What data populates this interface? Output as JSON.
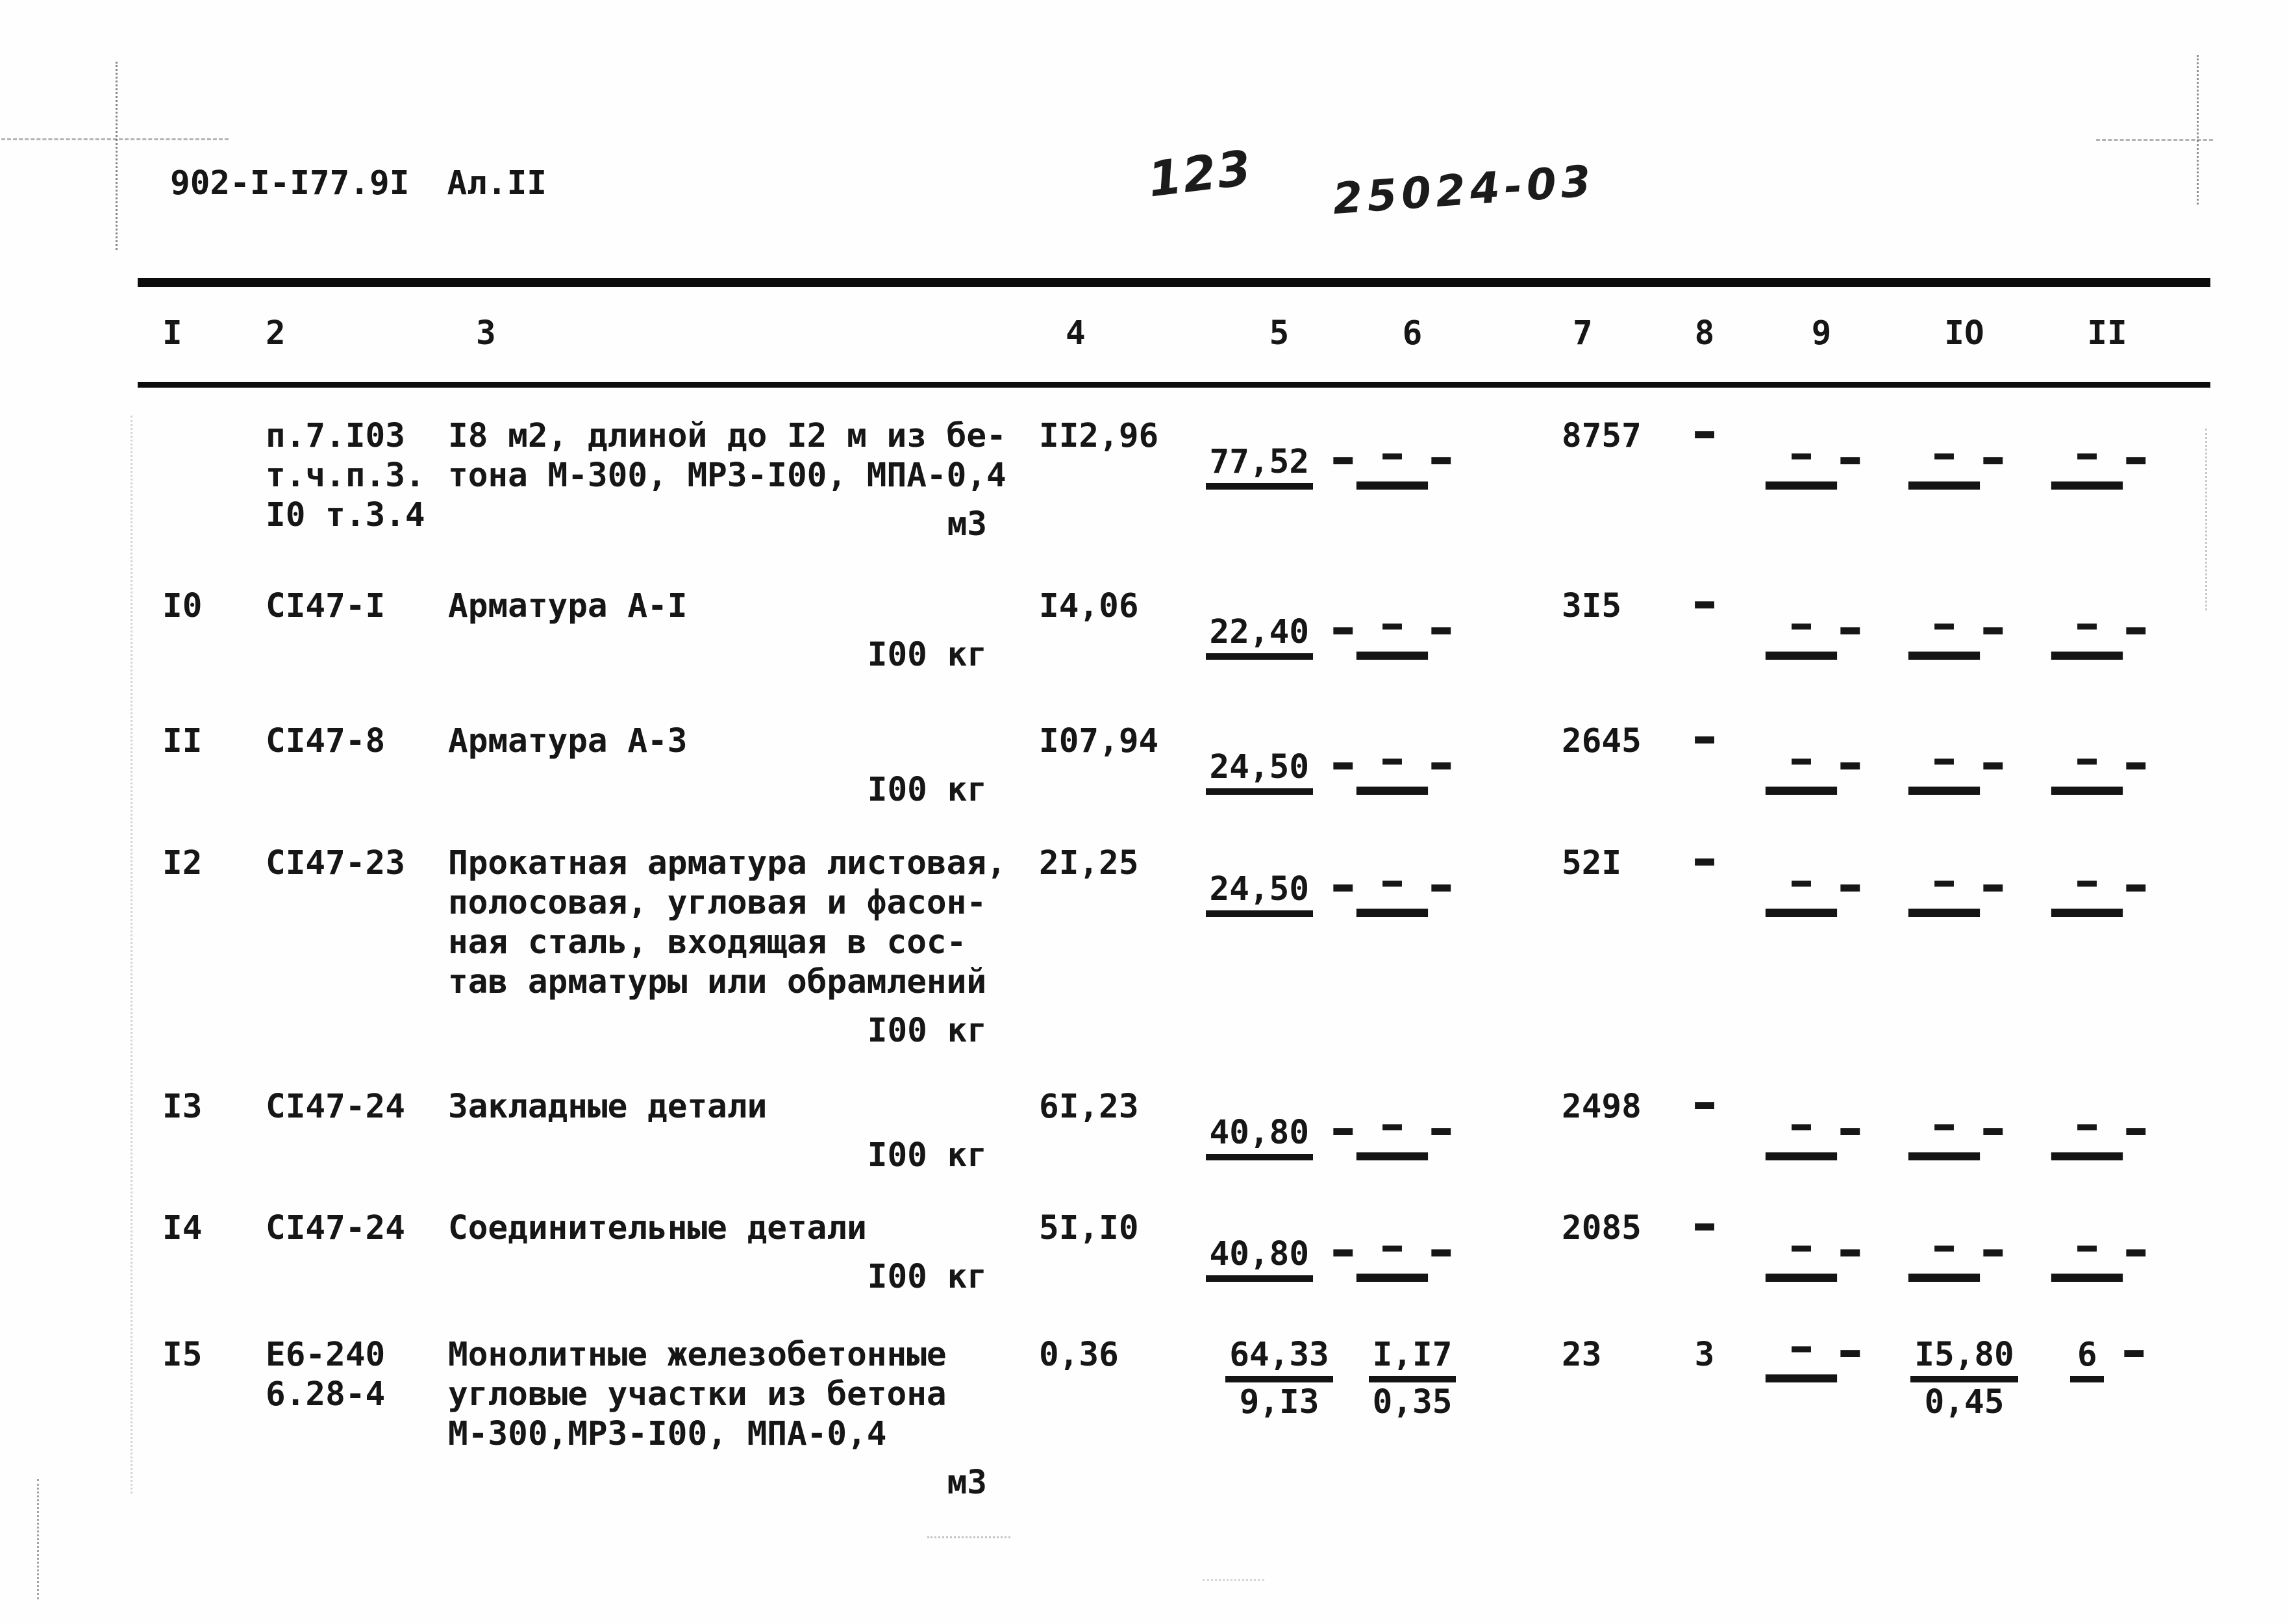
{
  "header": {
    "doc_code": "902-I-I77.9I",
    "album": "Ал.II"
  },
  "annotations": {
    "page_number": "123",
    "doc_number": "25024-03"
  },
  "table": {
    "column_headers": [
      "I",
      "2",
      "3",
      "4",
      "5",
      "6",
      "7",
      "8",
      "9",
      "IO",
      "II"
    ],
    "rows": [
      {
        "num": "",
        "code_lines": [
          "п.7.I03",
          "т.ч.п.3.",
          "I0 т.3.4"
        ],
        "desc_lines": [
          "I8 м2, длиной до I2 м из бе-",
          "тона М-300, МРЗ-I00, МПА-0,4"
        ],
        "unit": "м3",
        "c4": "II2,96",
        "c5": {
          "top": "77,52",
          "bottom": "-"
        },
        "c6": {
          "top": "-",
          "bottom": "-"
        },
        "c7": "8757",
        "c8": "-",
        "c9": {
          "top": "-",
          "bottom": "-"
        },
        "c10": {
          "top": "-",
          "bottom": "-"
        },
        "c11": {
          "top": "-",
          "bottom": "-"
        }
      },
      {
        "num": "I0",
        "code_lines": [
          "СI47-I"
        ],
        "desc_lines": [
          "Арматура А-I"
        ],
        "unit": "I00 кг",
        "c4": "I4,06",
        "c5": {
          "top": "22,40",
          "bottom": "-"
        },
        "c6": {
          "top": "-",
          "bottom": "-"
        },
        "c7": "3I5",
        "c8": "-",
        "c9": {
          "top": "-",
          "bottom": "-"
        },
        "c10": {
          "top": "-",
          "bottom": "-"
        },
        "c11": {
          "top": "-",
          "bottom": "-"
        }
      },
      {
        "num": "II",
        "code_lines": [
          "СI47-8"
        ],
        "desc_lines": [
          "Арматура А-3"
        ],
        "unit": "I00 кг",
        "c4": "I07,94",
        "c5": {
          "top": "24,50",
          "bottom": "-"
        },
        "c6": {
          "top": "-",
          "bottom": "-"
        },
        "c7": "2645",
        "c8": "-",
        "c9": {
          "top": "-",
          "bottom": "-"
        },
        "c10": {
          "top": "-",
          "bottom": "-"
        },
        "c11": {
          "top": "-",
          "bottom": "-"
        }
      },
      {
        "num": "I2",
        "code_lines": [
          "СI47-23"
        ],
        "desc_lines": [
          "Прокатная арматура листовая,",
          "полосовая, угловая и фасон-",
          "ная сталь, входящая в сос-",
          "тав арматуры или обрамлений"
        ],
        "unit": "I00 кг",
        "c4": "2I,25",
        "c5": {
          "top": "24,50",
          "bottom": "-"
        },
        "c6": {
          "top": "-",
          "bottom": "-"
        },
        "c7": "52I",
        "c8": "-",
        "c9": {
          "top": "-",
          "bottom": "-"
        },
        "c10": {
          "top": "-",
          "bottom": "-"
        },
        "c11": {
          "top": "-",
          "bottom": "-"
        }
      },
      {
        "num": "I3",
        "code_lines": [
          "СI47-24"
        ],
        "desc_lines": [
          "Закладные детали"
        ],
        "unit": "I00 кг",
        "c4": "6I,23",
        "c5": {
          "top": "40,80",
          "bottom": "-"
        },
        "c6": {
          "top": "-",
          "bottom": "-"
        },
        "c7": "2498",
        "c8": "-",
        "c9": {
          "top": "-",
          "bottom": "-"
        },
        "c10": {
          "top": "-",
          "bottom": "-"
        },
        "c11": {
          "top": "-",
          "bottom": "-"
        }
      },
      {
        "num": "I4",
        "code_lines": [
          "СI47-24"
        ],
        "desc_lines": [
          "Соединительные детали"
        ],
        "unit": "I00 кг",
        "c4": "5I,I0",
        "c5": {
          "top": "40,80",
          "bottom": "-"
        },
        "c6": {
          "top": "-",
          "bottom": "-"
        },
        "c7": "2085",
        "c8": "-",
        "c9": {
          "top": "-",
          "bottom": "-"
        },
        "c10": {
          "top": "-",
          "bottom": "-"
        },
        "c11": {
          "top": "-",
          "bottom": "-"
        }
      },
      {
        "num": "I5",
        "code_lines": [
          "Е6-240",
          "6.28-4"
        ],
        "desc_lines": [
          "Монолитные железобетонные",
          "угловые участки из бетона",
          "М-300,МРЗ-I00, МПА-0,4"
        ],
        "unit": "м3",
        "c4": "0,36",
        "c5": {
          "top": "64,33",
          "bottom": "9,I3"
        },
        "c6": {
          "top": "I,I7",
          "bottom": "0,35"
        },
        "c7": "23",
        "c8": "3",
        "c9": {
          "top": "-",
          "bottom": "-"
        },
        "c10": {
          "top": "I5,80",
          "bottom": "0,45"
        },
        "c11": {
          "top": "6",
          "bottom": "-"
        }
      }
    ]
  }
}
